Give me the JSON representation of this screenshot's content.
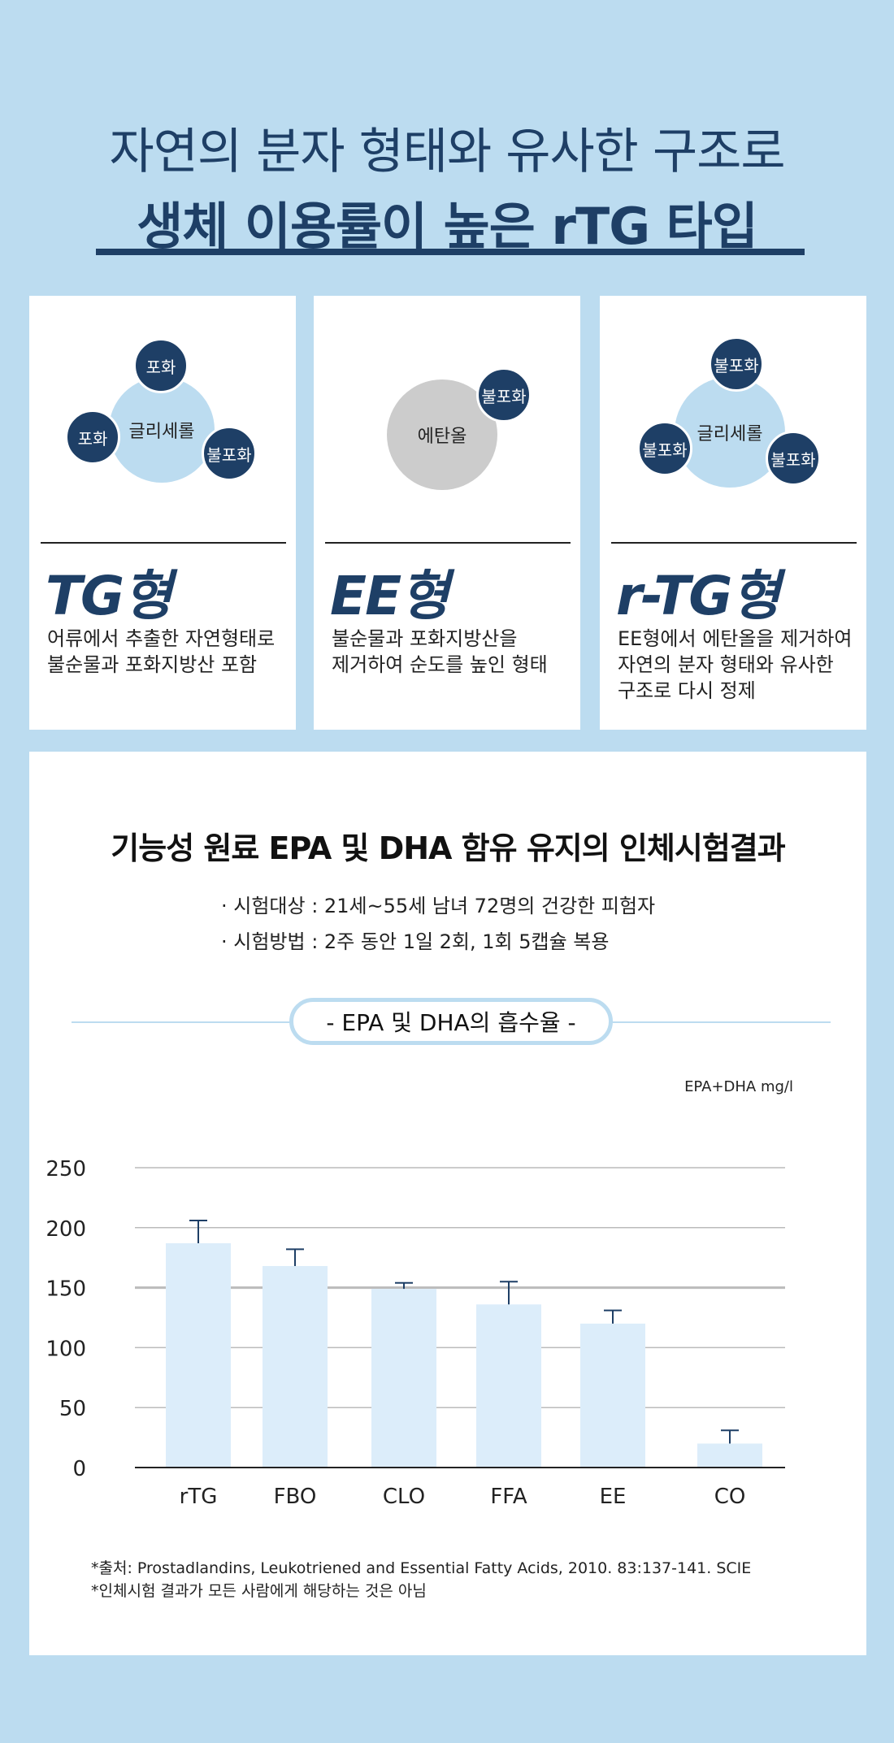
{
  "header": {
    "line1": "자연의 분자 형태와 유사한 구조로",
    "line2": "생체 이용률이 높은 rTG 타입"
  },
  "cards": [
    {
      "big_label": "글리세롤",
      "small_labels": [
        "포화",
        "포화",
        "불포화"
      ],
      "type_label": "TG형",
      "desc": [
        "어류에서 추출한 자연형태로",
        "불순물과 포화지방산 포함"
      ]
    },
    {
      "big_label": "에탄올",
      "small_labels": [
        "불포화"
      ],
      "type_label": "EE형",
      "desc": [
        "불순물과 포화지방산을",
        "제거하여 순도를 높인 형태"
      ]
    },
    {
      "big_label": "글리세롤",
      "small_labels": [
        "불포화",
        "불포화",
        "불포화"
      ],
      "type_label": "r-TG형",
      "desc": [
        "EE형에서 에탄올을 제거하여",
        "자연의 분자 형태와 유사한",
        "구조로 다시 정제"
      ]
    }
  ],
  "study": {
    "title": "기능성 원료 EPA 및 DHA 함유 유지의 인체시험결과",
    "bullets": [
      "· 시험대상 : 21세~55세 남녀 72명의 건강한 피험자",
      "· 시험방법 : 2주 동안 1일 2회, 1회 5캡슐 복용"
    ],
    "pill_label": "- EPA 및 DHA의 흡수율 -",
    "source": [
      "*출처: Prostadlandins, Leukotriened and Essential Fatty Acids, 2010. 83:137-141. SCIE",
      "*인체시험 결과가 모든 사람에게 해당하는 것은 아님"
    ]
  },
  "chart_data": {
    "type": "bar",
    "title": "",
    "xlabel": "",
    "ylabel": "EPA+DHA mg/l",
    "categories": [
      "rTG",
      "FBO",
      "CLO",
      "FFA",
      "EE",
      "CO"
    ],
    "values": [
      187,
      168,
      149,
      136,
      120,
      20
    ],
    "error_upper": [
      206,
      182,
      154,
      155,
      131,
      31
    ],
    "ylim": [
      0,
      250
    ],
    "yticks": [
      0,
      50,
      100,
      150,
      200,
      250
    ],
    "grid": true,
    "colors": {
      "bar": "#dcedfa",
      "error": "#1e3f66",
      "grid": "#bbbbbb",
      "axis": "#222222"
    }
  }
}
